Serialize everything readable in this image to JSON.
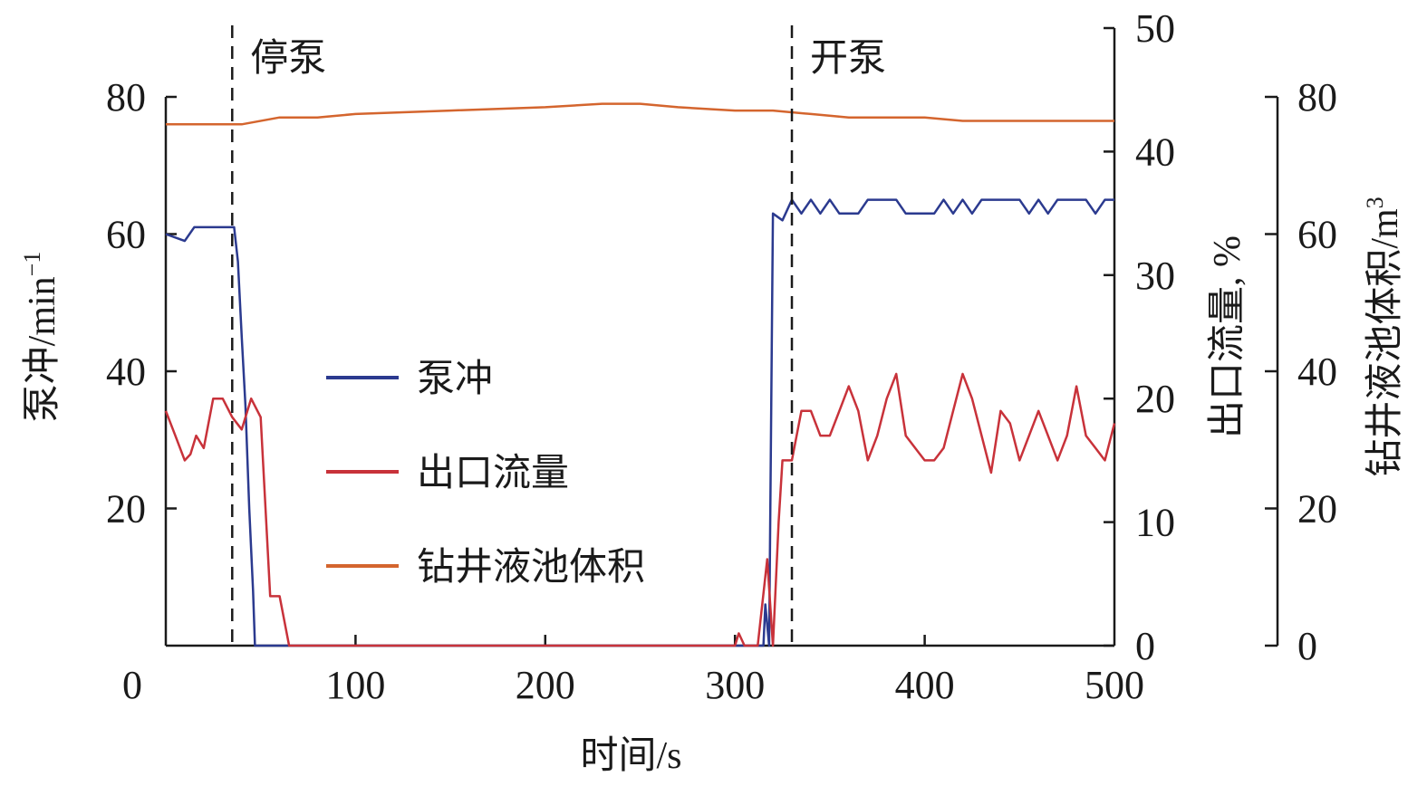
{
  "chart_data": {
    "type": "line",
    "xlabel": "时间/s",
    "x_ticks": [
      "0",
      "100",
      "200",
      "300",
      "400",
      "500"
    ],
    "xlim": [
      0,
      500
    ],
    "axes": {
      "left": {
        "label": "泵冲/min",
        "label_sup": "−1",
        "ylim": [
          0,
          80
        ],
        "ticks": [
          "20",
          "40",
          "60",
          "80"
        ]
      },
      "right1": {
        "label": "出口流量, %",
        "ylim": [
          0,
          50
        ],
        "ticks": [
          "0",
          "10",
          "20",
          "30",
          "40",
          "50"
        ]
      },
      "right2": {
        "label": "钻井液池体积/m",
        "label_sup": "3",
        "ylim": [
          0,
          80
        ],
        "ticks": [
          "0",
          "20",
          "40",
          "60",
          "80"
        ]
      }
    },
    "annotations": [
      {
        "text": "停泵",
        "x": 35
      },
      {
        "text": "开泵",
        "x": 330
      }
    ],
    "legend": {
      "placement": "center-left"
    },
    "series": [
      {
        "name": "泵冲",
        "axis": "left",
        "color": "#2b3a8f",
        "points": [
          [
            0,
            60
          ],
          [
            5,
            59.5
          ],
          [
            10,
            59
          ],
          [
            15,
            61
          ],
          [
            20,
            61
          ],
          [
            30,
            61
          ],
          [
            36,
            61
          ],
          [
            38,
            56
          ],
          [
            40,
            45
          ],
          [
            42,
            35
          ],
          [
            44,
            20
          ],
          [
            46,
            8
          ],
          [
            47,
            0
          ],
          [
            315,
            0
          ],
          [
            316,
            6
          ],
          [
            318,
            0
          ],
          [
            320,
            63
          ],
          [
            325,
            62
          ],
          [
            330,
            65
          ],
          [
            335,
            63
          ],
          [
            340,
            65
          ],
          [
            345,
            63
          ],
          [
            350,
            65
          ],
          [
            355,
            63
          ],
          [
            360,
            63
          ],
          [
            365,
            63
          ],
          [
            370,
            65
          ],
          [
            375,
            65
          ],
          [
            380,
            65
          ],
          [
            385,
            65
          ],
          [
            390,
            63
          ],
          [
            400,
            63
          ],
          [
            405,
            63
          ],
          [
            410,
            65
          ],
          [
            415,
            63
          ],
          [
            420,
            65
          ],
          [
            425,
            63
          ],
          [
            430,
            65
          ],
          [
            435,
            65
          ],
          [
            440,
            65
          ],
          [
            450,
            65
          ],
          [
            455,
            63
          ],
          [
            460,
            65
          ],
          [
            465,
            63
          ],
          [
            470,
            65
          ],
          [
            480,
            65
          ],
          [
            485,
            65
          ],
          [
            490,
            63
          ],
          [
            495,
            65
          ],
          [
            500,
            65
          ]
        ]
      },
      {
        "name": "出口流量",
        "axis": "right1",
        "color": "#c8323a",
        "points": [
          [
            0,
            19
          ],
          [
            5,
            17
          ],
          [
            10,
            15
          ],
          [
            13,
            15.5
          ],
          [
            16,
            17
          ],
          [
            20,
            16
          ],
          [
            25,
            20
          ],
          [
            30,
            20
          ],
          [
            35,
            18.5
          ],
          [
            40,
            17.5
          ],
          [
            45,
            20
          ],
          [
            50,
            18.5
          ],
          [
            55,
            4
          ],
          [
            60,
            4
          ],
          [
            65,
            0
          ],
          [
            300,
            0
          ],
          [
            302,
            1
          ],
          [
            305,
            0
          ],
          [
            312,
            0
          ],
          [
            317,
            7
          ],
          [
            320,
            0
          ],
          [
            323,
            10
          ],
          [
            325,
            15
          ],
          [
            330,
            15
          ],
          [
            335,
            19
          ],
          [
            340,
            19
          ],
          [
            345,
            17
          ],
          [
            350,
            17
          ],
          [
            355,
            19
          ],
          [
            360,
            21
          ],
          [
            365,
            19
          ],
          [
            370,
            15
          ],
          [
            375,
            17
          ],
          [
            380,
            20
          ],
          [
            385,
            22
          ],
          [
            390,
            17
          ],
          [
            395,
            16
          ],
          [
            400,
            15
          ],
          [
            405,
            15
          ],
          [
            410,
            16
          ],
          [
            415,
            19
          ],
          [
            420,
            22
          ],
          [
            425,
            20
          ],
          [
            430,
            17
          ],
          [
            435,
            14
          ],
          [
            440,
            19
          ],
          [
            445,
            18
          ],
          [
            450,
            15
          ],
          [
            455,
            17
          ],
          [
            460,
            19
          ],
          [
            465,
            17
          ],
          [
            470,
            15
          ],
          [
            475,
            17
          ],
          [
            480,
            21
          ],
          [
            485,
            17
          ],
          [
            490,
            16
          ],
          [
            495,
            15
          ],
          [
            500,
            18
          ]
        ]
      },
      {
        "name": "钻井液池体积",
        "axis": "right2",
        "color": "#d4652e",
        "points": [
          [
            0,
            76
          ],
          [
            20,
            76
          ],
          [
            40,
            76
          ],
          [
            60,
            77
          ],
          [
            80,
            77
          ],
          [
            100,
            77.5
          ],
          [
            150,
            78
          ],
          [
            200,
            78.5
          ],
          [
            230,
            79
          ],
          [
            250,
            79
          ],
          [
            270,
            78.5
          ],
          [
            300,
            78
          ],
          [
            320,
            78
          ],
          [
            340,
            77.5
          ],
          [
            360,
            77
          ],
          [
            380,
            77
          ],
          [
            400,
            77
          ],
          [
            420,
            76.5
          ],
          [
            450,
            76.5
          ],
          [
            480,
            76.5
          ],
          [
            500,
            76.5
          ]
        ]
      }
    ]
  }
}
